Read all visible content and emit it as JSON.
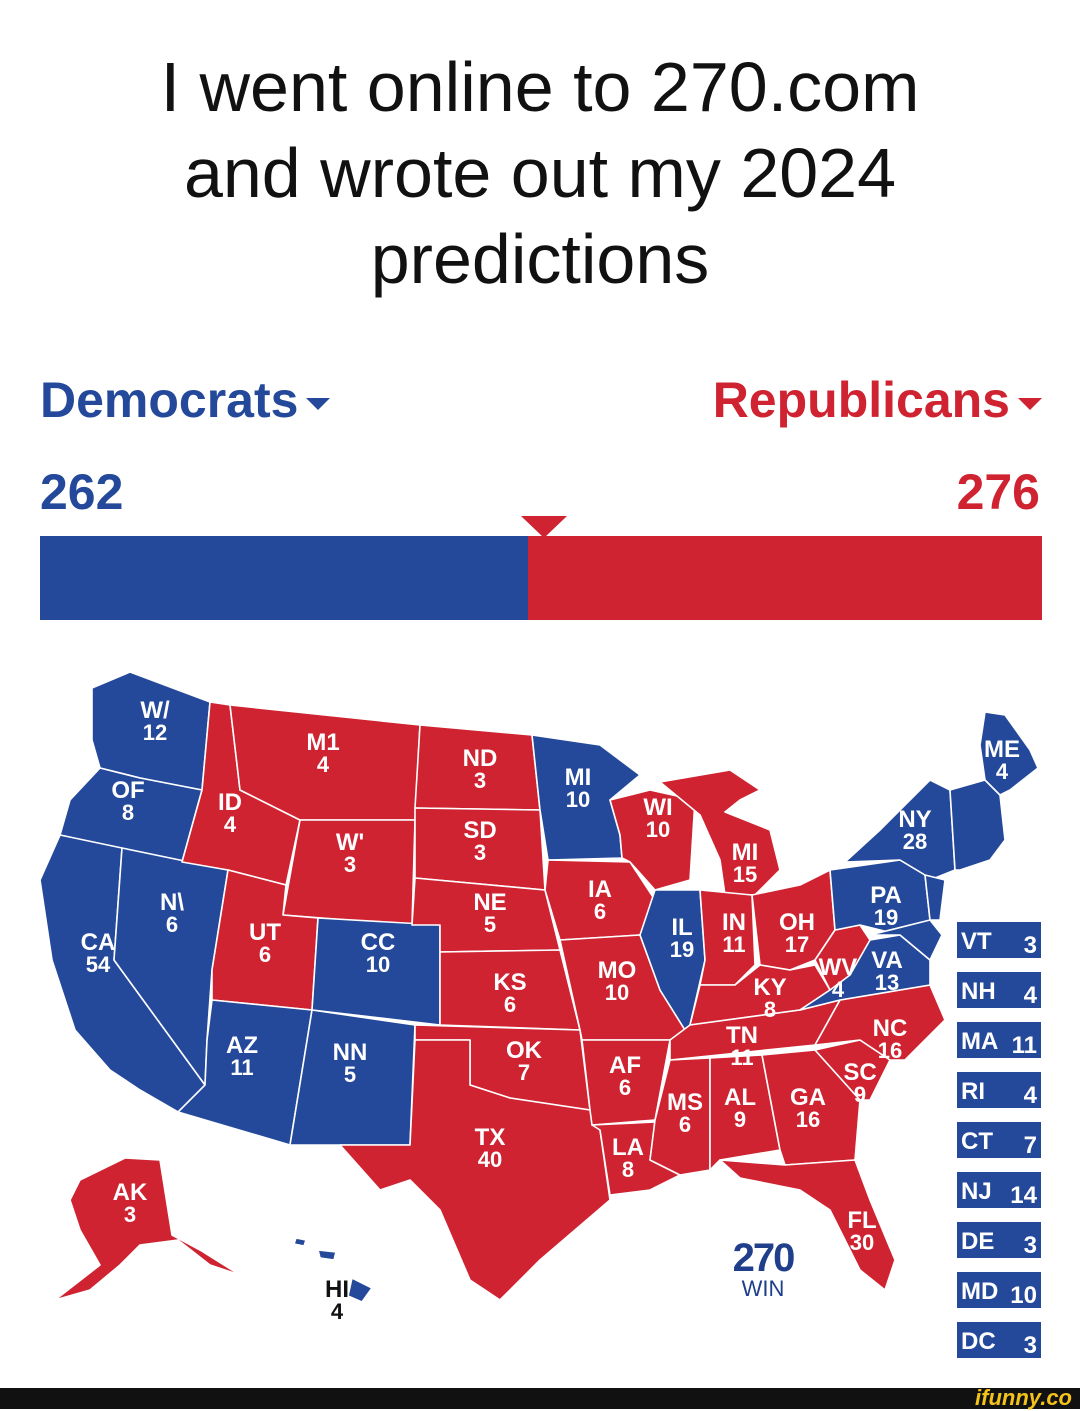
{
  "caption": {
    "line1": "I went online to 270.com",
    "line2": "and wrote out my 2024",
    "line3": "predictions"
  },
  "parties": {
    "democrats": {
      "label": "Democrats",
      "votes": "262",
      "color": "#24499a"
    },
    "republicans": {
      "label": "Republicans",
      "votes": "276",
      "color": "#cf2331"
    }
  },
  "icons": {
    "dropdown": "chevron-down-icon",
    "threshold": "triangle-marker-icon"
  },
  "map": {
    "states": [
      {
        "abbr": "WA",
        "label": "W/",
        "ev": "12",
        "party": "D"
      },
      {
        "abbr": "OR",
        "label": "OF",
        "ev": "8",
        "party": "D"
      },
      {
        "abbr": "CA",
        "label": "CA",
        "ev": "54",
        "party": "D"
      },
      {
        "abbr": "NV",
        "label": "N\\",
        "ev": "6",
        "party": "D"
      },
      {
        "abbr": "ID",
        "label": "ID",
        "ev": "4",
        "party": "R"
      },
      {
        "abbr": "MT",
        "label": "M1",
        "ev": "4",
        "party": "R"
      },
      {
        "abbr": "WY",
        "label": "W'",
        "ev": "3",
        "party": "R"
      },
      {
        "abbr": "UT",
        "label": "UT",
        "ev": "6",
        "party": "R"
      },
      {
        "abbr": "CO",
        "label": "CC",
        "ev": "10",
        "party": "D"
      },
      {
        "abbr": "AZ",
        "label": "AZ",
        "ev": "11",
        "party": "D"
      },
      {
        "abbr": "NM",
        "label": "NN",
        "ev": "5",
        "party": "D"
      },
      {
        "abbr": "ND",
        "label": "ND",
        "ev": "3",
        "party": "R"
      },
      {
        "abbr": "SD",
        "label": "SD",
        "ev": "3",
        "party": "R"
      },
      {
        "abbr": "NE",
        "label": "NE",
        "ev": "5",
        "party": "R"
      },
      {
        "abbr": "KS",
        "label": "KS",
        "ev": "6",
        "party": "R"
      },
      {
        "abbr": "OK",
        "label": "OK",
        "ev": "7",
        "party": "R"
      },
      {
        "abbr": "TX",
        "label": "TX",
        "ev": "40",
        "party": "R"
      },
      {
        "abbr": "MN",
        "label": "MI",
        "ev": "10",
        "party": "D"
      },
      {
        "abbr": "IA",
        "label": "IA",
        "ev": "6",
        "party": "R"
      },
      {
        "abbr": "MO",
        "label": "MO",
        "ev": "10",
        "party": "R"
      },
      {
        "abbr": "AR",
        "label": "AF",
        "ev": "6",
        "party": "R"
      },
      {
        "abbr": "LA",
        "label": "LA",
        "ev": "8",
        "party": "R"
      },
      {
        "abbr": "WI",
        "label": "WI",
        "ev": "10",
        "party": "R"
      },
      {
        "abbr": "IL",
        "label": "IL",
        "ev": "19",
        "party": "D"
      },
      {
        "abbr": "MI",
        "label": "MI",
        "ev": "15",
        "party": "R"
      },
      {
        "abbr": "IN",
        "label": "IN",
        "ev": "11",
        "party": "R"
      },
      {
        "abbr": "OH",
        "label": "OH",
        "ev": "17",
        "party": "R"
      },
      {
        "abbr": "KY",
        "label": "KY",
        "ev": "8",
        "party": "R"
      },
      {
        "abbr": "TN",
        "label": "TN",
        "ev": "11",
        "party": "R"
      },
      {
        "abbr": "MS",
        "label": "MS",
        "ev": "6",
        "party": "R"
      },
      {
        "abbr": "AL",
        "label": "AL",
        "ev": "9",
        "party": "R"
      },
      {
        "abbr": "GA",
        "label": "GA",
        "ev": "16",
        "party": "R"
      },
      {
        "abbr": "FL",
        "label": "FL",
        "ev": "30",
        "party": "R"
      },
      {
        "abbr": "SC",
        "label": "SC",
        "ev": "9",
        "party": "R"
      },
      {
        "abbr": "NC",
        "label": "NC",
        "ev": "16",
        "party": "R"
      },
      {
        "abbr": "VA",
        "label": "VA",
        "ev": "13",
        "party": "D"
      },
      {
        "abbr": "WV",
        "label": "WV",
        "ev": "4",
        "party": "R"
      },
      {
        "abbr": "PA",
        "label": "PA",
        "ev": "19",
        "party": "D"
      },
      {
        "abbr": "NY",
        "label": "NY",
        "ev": "28",
        "party": "D"
      },
      {
        "abbr": "ME",
        "label": "ME",
        "ev": "4",
        "party": "D"
      },
      {
        "abbr": "AK",
        "label": "AK",
        "ev": "3",
        "party": "R"
      },
      {
        "abbr": "HI",
        "label": "HI",
        "ev": "4",
        "party": "D"
      }
    ],
    "small_states": [
      {
        "abbr": "VT",
        "ev": "3"
      },
      {
        "abbr": "NH",
        "ev": "4"
      },
      {
        "abbr": "MA",
        "ev": "11"
      },
      {
        "abbr": "RI",
        "ev": "4"
      },
      {
        "abbr": "CT",
        "ev": "7"
      },
      {
        "abbr": "NJ",
        "ev": "14"
      },
      {
        "abbr": "DE",
        "ev": "3"
      },
      {
        "abbr": "MD",
        "ev": "10"
      },
      {
        "abbr": "DC",
        "ev": "3"
      }
    ]
  },
  "logo": {
    "number": "270",
    "sub": "WIN"
  },
  "footer": {
    "watermark": "ifunny.co"
  }
}
